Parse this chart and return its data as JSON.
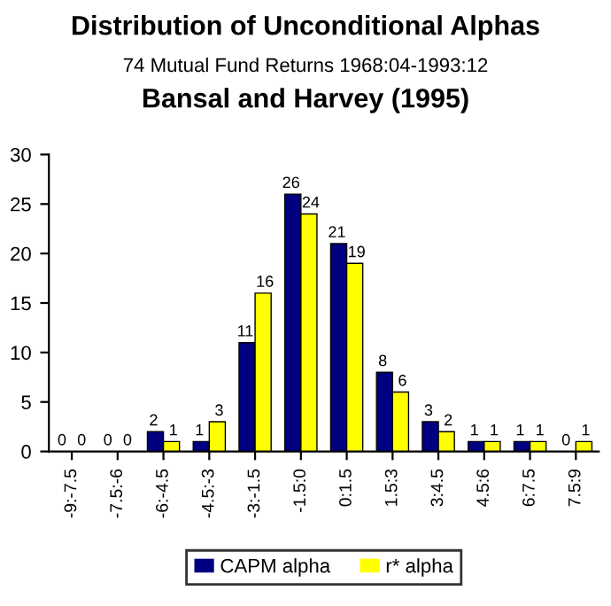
{
  "chart_data": {
    "type": "bar",
    "title": "Distribution of Unconditional Alphas",
    "subtitle": "74 Mutual Fund Returns 1968:04-1993:12",
    "annotations": [
      "Bansal and Harvey (1995)"
    ],
    "categories": [
      "-9:-7.5",
      "-7.5:-6",
      "-6:-4.5",
      "-4.5:-3",
      "-3:-1.5",
      "-1.5:0",
      "0:1.5",
      "1.5:3",
      "3:4.5",
      "4.5:6",
      "6:7.5",
      "7.5:9"
    ],
    "series": [
      {
        "name": "CAPM alpha",
        "color": "#000080",
        "values": [
          0,
          0,
          2,
          1,
          11,
          26,
          21,
          8,
          3,
          1,
          1,
          0
        ]
      },
      {
        "name": "r* alpha",
        "color": "#ffff00",
        "values": [
          0,
          0,
          1,
          3,
          16,
          24,
          19,
          6,
          2,
          1,
          1,
          1
        ]
      }
    ],
    "ylim": [
      0,
      30
    ],
    "yticks": [
      0,
      5,
      10,
      15,
      20,
      25,
      30
    ],
    "grid": false,
    "legend": "bottom",
    "data_labels": true
  }
}
